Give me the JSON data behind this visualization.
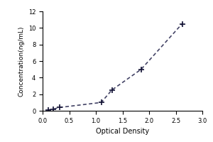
{
  "x": [
    0.1,
    0.2,
    0.32,
    1.1,
    1.3,
    1.85,
    2.62
  ],
  "y": [
    0.1,
    0.2,
    0.4,
    1.0,
    2.5,
    5.0,
    10.5
  ],
  "xlabel": "Optical Density",
  "ylabel": "Concentration(ng/mL)",
  "xlim": [
    0,
    3
  ],
  "ylim": [
    0,
    12
  ],
  "xticks": [
    0,
    0.5,
    1.0,
    1.5,
    2.0,
    2.5,
    3.0
  ],
  "yticks": [
    0,
    2,
    4,
    6,
    8,
    10,
    12
  ],
  "line_color": "#444466",
  "line_style": "--",
  "line_dash_pattern": [
    2,
    2
  ],
  "marker": "+",
  "marker_color": "#111133",
  "marker_size": 6,
  "marker_linewidth": 1.2,
  "line_width": 1.2,
  "bg_color": "#ffffff",
  "xlabel_fontsize": 7,
  "ylabel_fontsize": 6.5,
  "tick_fontsize": 6
}
